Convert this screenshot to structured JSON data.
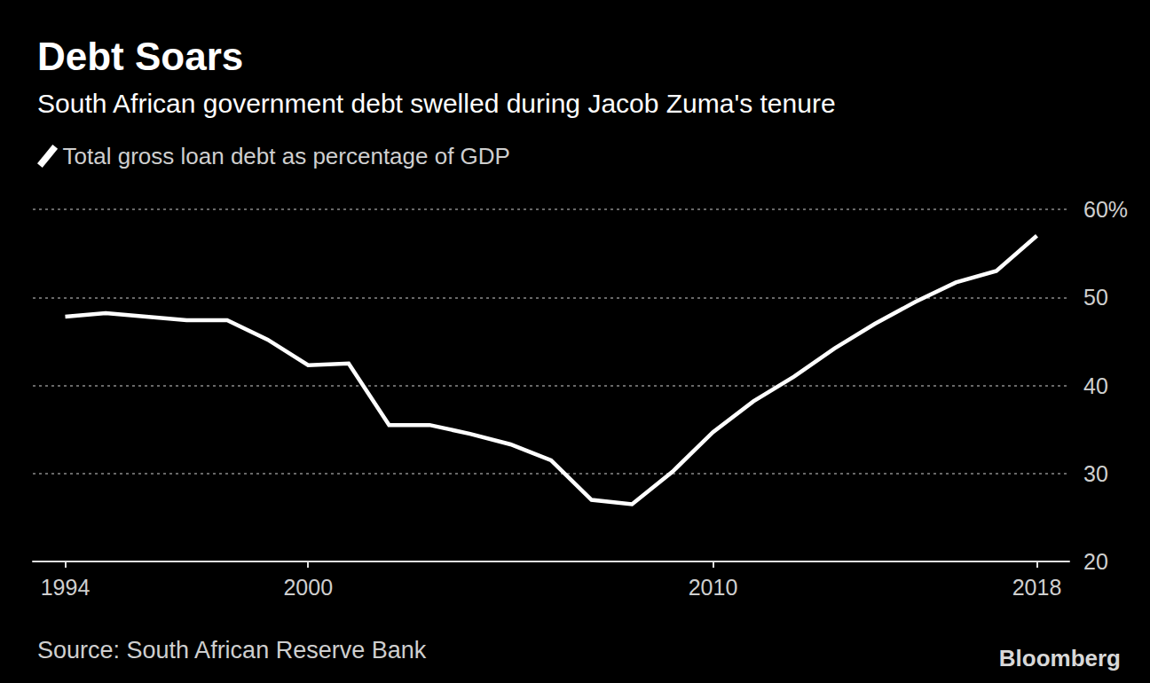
{
  "chart_data": {
    "type": "line",
    "title": "Debt Soars",
    "subtitle": "South African government debt swelled during Jacob Zuma's tenure",
    "source": "Source: South African Reserve Bank",
    "brand": "Bloomberg",
    "x": [
      1994,
      1995,
      1996,
      1997,
      1998,
      1999,
      2000,
      2001,
      2002,
      2003,
      2004,
      2005,
      2006,
      2007,
      2008,
      2009,
      2010,
      2011,
      2012,
      2013,
      2014,
      2015,
      2016,
      2017,
      2018
    ],
    "series": [
      {
        "name": "Total gross loan debt as percentage of GDP",
        "color": "#ffffff",
        "values": [
          47.8,
          48.2,
          47.8,
          47.4,
          47.4,
          45.2,
          42.3,
          42.5,
          35.5,
          35.5,
          34.5,
          33.3,
          31.5,
          27.0,
          26.5,
          30.2,
          34.7,
          38.2,
          41.0,
          44.2,
          47.0,
          49.5,
          51.7,
          53.0,
          57.0
        ]
      }
    ],
    "xlim": [
      1993.2,
      2018.8
    ],
    "xticks": [
      1994,
      2000,
      2010,
      2018
    ],
    "ylim": [
      20,
      60
    ],
    "yticks": [
      20,
      30,
      40,
      50,
      {
        "value": 60,
        "label": "60%"
      }
    ],
    "grid": true,
    "legend": "top-left"
  }
}
